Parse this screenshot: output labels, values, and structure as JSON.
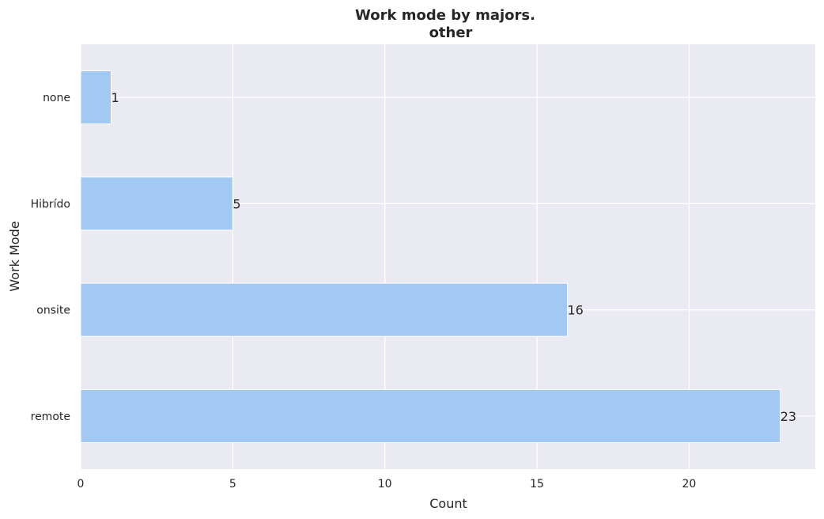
{
  "chart_data": {
    "type": "bar",
    "orientation": "horizontal",
    "title": "Work mode by majors.",
    "subtitle": "other",
    "xlabel": "Count",
    "ylabel": "Work Mode",
    "categories": [
      "remote",
      "onsite",
      "Hibrído",
      "none"
    ],
    "values": [
      23,
      16,
      5,
      1
    ],
    "xlim": [
      0,
      24.15
    ],
    "xticks": [
      0,
      5,
      10,
      15,
      20
    ],
    "grid": true,
    "legend": "none",
    "colors": {
      "bar": "#a1c9f4",
      "plot_background": "#eaeaf2",
      "grid": "#ffffff"
    }
  }
}
